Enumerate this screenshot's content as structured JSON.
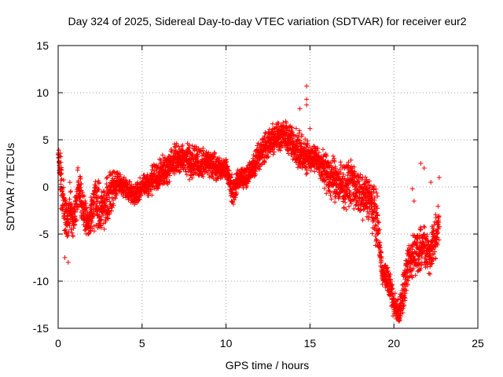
{
  "chart_data": {
    "type": "scatter",
    "title": "Day 324 of 2025, Sidereal Day-to-day VTEC variation (SDTVAR) for receiver eur2",
    "xlabel": "GPS time / hours",
    "ylabel": "SDTVAR / TECUs",
    "xlim": [
      0,
      25
    ],
    "ylim": [
      -15,
      15
    ],
    "xticks": [
      "0",
      "5",
      "10",
      "15",
      "20",
      "25"
    ],
    "yticks": [
      "-15",
      "-10",
      "-5",
      "0",
      "5",
      "10",
      "15"
    ],
    "grid": true,
    "marker": "+",
    "series": [
      {
        "name": "eur2",
        "color": "#ff0000",
        "trend": [
          {
            "x": 0.0,
            "y": 3.5,
            "spread": 1.2
          },
          {
            "x": 0.15,
            "y": 1.0,
            "spread": 3.0
          },
          {
            "x": 0.3,
            "y": -2.0,
            "spread": 3.5
          },
          {
            "x": 0.5,
            "y": -3.5,
            "spread": 3.0
          },
          {
            "x": 0.7,
            "y": -2.5,
            "spread": 3.5
          },
          {
            "x": 0.9,
            "y": -4.0,
            "spread": 2.5
          },
          {
            "x": 1.2,
            "y": 0.0,
            "spread": 3.0
          },
          {
            "x": 1.5,
            "y": -2.5,
            "spread": 3.0
          },
          {
            "x": 1.8,
            "y": -4.0,
            "spread": 1.5
          },
          {
            "x": 2.2,
            "y": -1.5,
            "spread": 4.0
          },
          {
            "x": 2.6,
            "y": -2.5,
            "spread": 3.0
          },
          {
            "x": 3.0,
            "y": -1.0,
            "spread": 3.5
          },
          {
            "x": 3.5,
            "y": 0.5,
            "spread": 1.5
          },
          {
            "x": 4.0,
            "y": 0.0,
            "spread": 1.5
          },
          {
            "x": 4.5,
            "y": -1.0,
            "spread": 1.5
          },
          {
            "x": 5.0,
            "y": 0.0,
            "spread": 1.5
          },
          {
            "x": 5.5,
            "y": 0.5,
            "spread": 2.0
          },
          {
            "x": 6.0,
            "y": 1.5,
            "spread": 2.0
          },
          {
            "x": 6.5,
            "y": 2.0,
            "spread": 2.0
          },
          {
            "x": 7.0,
            "y": 3.0,
            "spread": 2.0
          },
          {
            "x": 7.5,
            "y": 3.0,
            "spread": 2.0
          },
          {
            "x": 8.0,
            "y": 2.5,
            "spread": 2.5
          },
          {
            "x": 8.5,
            "y": 2.5,
            "spread": 2.0
          },
          {
            "x": 9.0,
            "y": 2.5,
            "spread": 2.0
          },
          {
            "x": 9.5,
            "y": 2.0,
            "spread": 1.5
          },
          {
            "x": 10.0,
            "y": 2.0,
            "spread": 1.2
          },
          {
            "x": 10.4,
            "y": -0.5,
            "spread": 2.0
          },
          {
            "x": 10.8,
            "y": 1.0,
            "spread": 1.5
          },
          {
            "x": 11.2,
            "y": 1.0,
            "spread": 1.5
          },
          {
            "x": 11.6,
            "y": 2.0,
            "spread": 1.5
          },
          {
            "x": 12.0,
            "y": 3.5,
            "spread": 2.0
          },
          {
            "x": 12.5,
            "y": 4.5,
            "spread": 2.5
          },
          {
            "x": 13.0,
            "y": 5.5,
            "spread": 2.0
          },
          {
            "x": 13.5,
            "y": 5.5,
            "spread": 2.0
          },
          {
            "x": 14.0,
            "y": 4.5,
            "spread": 2.5
          },
          {
            "x": 14.5,
            "y": 3.5,
            "spread": 2.5
          },
          {
            "x": 15.0,
            "y": 3.0,
            "spread": 2.0
          },
          {
            "x": 15.4,
            "y": 3.0,
            "spread": 1.5
          },
          {
            "x": 16.0,
            "y": 1.5,
            "spread": 3.0
          },
          {
            "x": 16.5,
            "y": 0.5,
            "spread": 3.0
          },
          {
            "x": 17.0,
            "y": 0.0,
            "spread": 3.0
          },
          {
            "x": 17.5,
            "y": 0.5,
            "spread": 3.0
          },
          {
            "x": 18.0,
            "y": -1.0,
            "spread": 3.0
          },
          {
            "x": 18.5,
            "y": -1.0,
            "spread": 3.0
          },
          {
            "x": 19.0,
            "y": -3.5,
            "spread": 4.0
          },
          {
            "x": 19.3,
            "y": -9.0,
            "spread": 1.5
          },
          {
            "x": 19.7,
            "y": -10.0,
            "spread": 2.0
          },
          {
            "x": 20.0,
            "y": -12.5,
            "spread": 2.0
          },
          {
            "x": 20.3,
            "y": -13.5,
            "spread": 1.5
          },
          {
            "x": 20.6,
            "y": -11.0,
            "spread": 3.0
          },
          {
            "x": 20.9,
            "y": -8.0,
            "spread": 3.0
          },
          {
            "x": 21.2,
            "y": -7.0,
            "spread": 3.0
          },
          {
            "x": 21.5,
            "y": -6.5,
            "spread": 3.0
          },
          {
            "x": 21.8,
            "y": -6.0,
            "spread": 3.0
          },
          {
            "x": 22.1,
            "y": -7.0,
            "spread": 3.0
          },
          {
            "x": 22.4,
            "y": -6.0,
            "spread": 3.0
          },
          {
            "x": 22.7,
            "y": -4.0,
            "spread": 3.0
          }
        ],
        "outliers": [
          {
            "x": 14.8,
            "y": 10.7
          },
          {
            "x": 14.8,
            "y": 9.3
          },
          {
            "x": 14.8,
            "y": 8.7
          },
          {
            "x": 14.4,
            "y": 8.3
          },
          {
            "x": 15.0,
            "y": 6.2
          },
          {
            "x": 21.6,
            "y": 2.5
          },
          {
            "x": 21.8,
            "y": 2.0
          },
          {
            "x": 22.2,
            "y": 0.5
          },
          {
            "x": 22.7,
            "y": 1.0
          },
          {
            "x": 21.1,
            "y": -0.2
          },
          {
            "x": 21.2,
            "y": -1.5
          },
          {
            "x": 0.6,
            "y": -8.0
          },
          {
            "x": 0.4,
            "y": -7.5
          }
        ]
      }
    ]
  }
}
